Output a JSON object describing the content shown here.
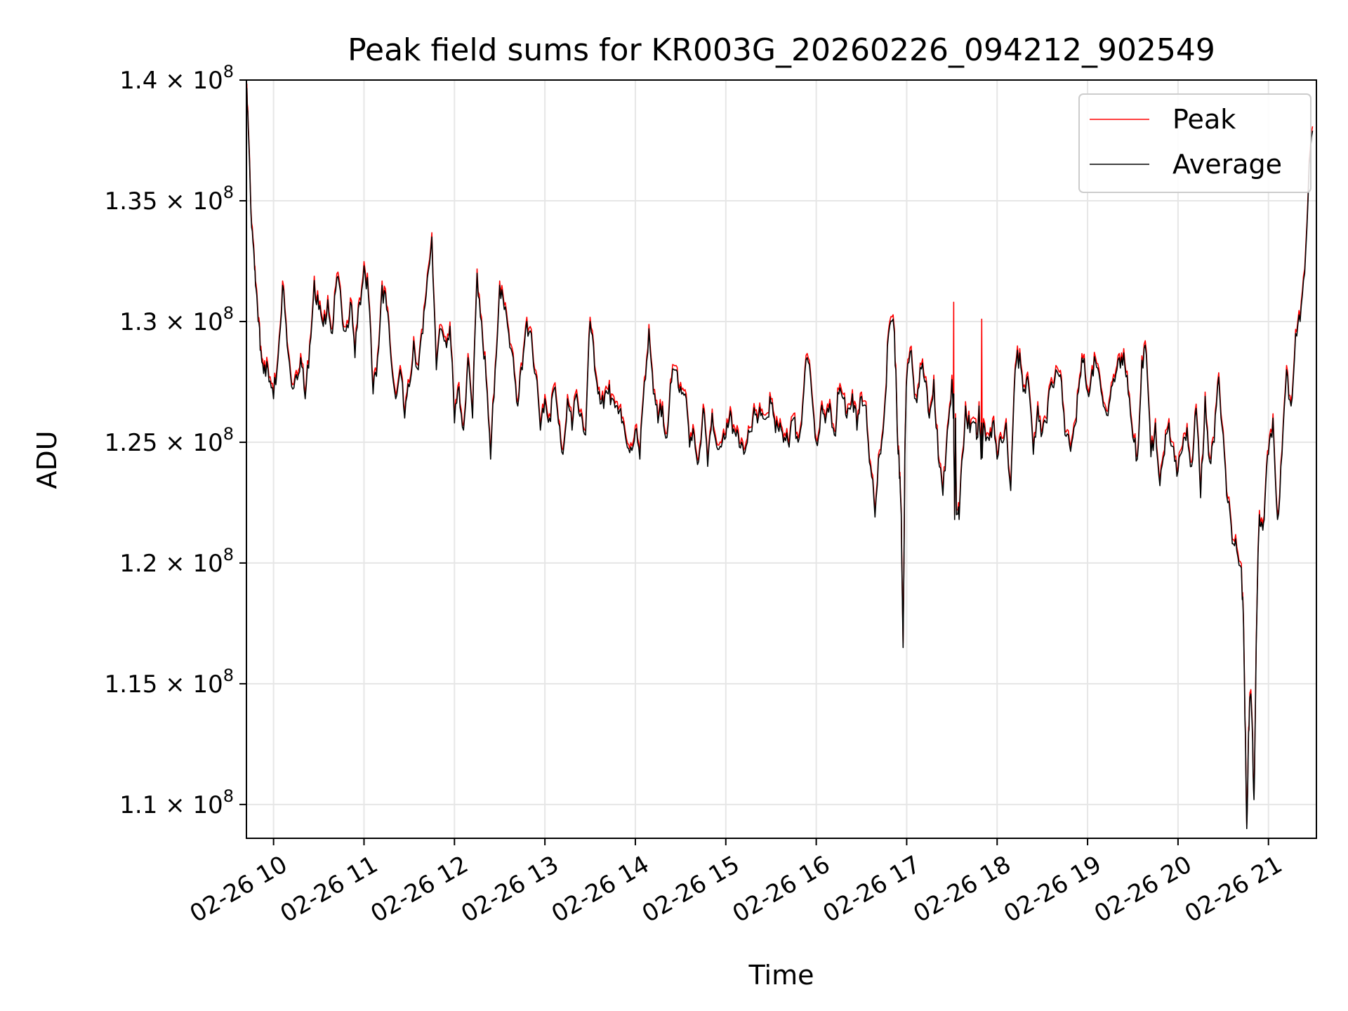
{
  "chart_data": {
    "type": "line",
    "title": "Peak field sums for KR003G_20260226_094212_902549",
    "xlabel": "Time",
    "ylabel": "ADU",
    "xlim": [
      9.7,
      21.53
    ],
    "ylim": [
      108600000,
      140000000
    ],
    "grid": true,
    "legend_position": "upper right",
    "x_ticks": [
      {
        "value": 10,
        "label": "02-26 10"
      },
      {
        "value": 11,
        "label": "02-26 11"
      },
      {
        "value": 12,
        "label": "02-26 12"
      },
      {
        "value": 13,
        "label": "02-26 13"
      },
      {
        "value": 14,
        "label": "02-26 14"
      },
      {
        "value": 15,
        "label": "02-26 15"
      },
      {
        "value": 16,
        "label": "02-26 16"
      },
      {
        "value": 17,
        "label": "02-26 17"
      },
      {
        "value": 18,
        "label": "02-26 18"
      },
      {
        "value": 19,
        "label": "02-26 19"
      },
      {
        "value": 20,
        "label": "02-26 20"
      },
      {
        "value": 21,
        "label": "02-26 21"
      }
    ],
    "y_ticks": [
      {
        "value": 110000000,
        "mant": "1.1",
        "exp": "8"
      },
      {
        "value": 115000000,
        "mant": "1.15",
        "exp": "8"
      },
      {
        "value": 120000000,
        "mant": "1.2",
        "exp": "8"
      },
      {
        "value": 125000000,
        "mant": "1.25",
        "exp": "8"
      },
      {
        "value": 130000000,
        "mant": "1.3",
        "exp": "8"
      },
      {
        "value": 135000000,
        "mant": "1.35",
        "exp": "8"
      },
      {
        "value": 140000000,
        "mant": "1.4",
        "exp": "8"
      }
    ],
    "times_mult": "×",
    "base": "10",
    "series": [
      {
        "name": "Peak",
        "color": "#ff0000",
        "offset": 180000
      },
      {
        "name": "Average",
        "color": "#000000",
        "offset": 0
      }
    ],
    "x": [
      9.7,
      9.72,
      9.75,
      9.78,
      9.8,
      9.83,
      9.86,
      9.9,
      9.95,
      10.0,
      10.05,
      10.1,
      10.15,
      10.2,
      10.25,
      10.3,
      10.35,
      10.4,
      10.45,
      10.5,
      10.55,
      10.6,
      10.65,
      10.7,
      10.75,
      10.8,
      10.85,
      10.9,
      10.95,
      11.0,
      11.05,
      11.1,
      11.15,
      11.2,
      11.25,
      11.3,
      11.35,
      11.4,
      11.45,
      11.5,
      11.55,
      11.6,
      11.65,
      11.7,
      11.75,
      11.8,
      11.85,
      11.9,
      11.95,
      12.0,
      12.05,
      12.1,
      12.15,
      12.2,
      12.25,
      12.3,
      12.35,
      12.4,
      12.45,
      12.5,
      12.55,
      12.6,
      12.65,
      12.7,
      12.75,
      12.8,
      12.85,
      12.9,
      12.95,
      13.0,
      13.05,
      13.1,
      13.15,
      13.2,
      13.25,
      13.3,
      13.35,
      13.4,
      13.45,
      13.5,
      13.55,
      13.6,
      13.65,
      13.7,
      13.75,
      13.8,
      13.85,
      13.9,
      13.95,
      14.0,
      14.05,
      14.1,
      14.15,
      14.2,
      14.25,
      14.3,
      14.35,
      14.4,
      14.45,
      14.5,
      14.55,
      14.6,
      14.65,
      14.7,
      14.75,
      14.8,
      14.85,
      14.9,
      14.95,
      15.0,
      15.05,
      15.1,
      15.15,
      15.2,
      15.25,
      15.3,
      15.35,
      15.4,
      15.45,
      15.5,
      15.55,
      15.6,
      15.65,
      15.7,
      15.75,
      15.8,
      15.85,
      15.9,
      15.95,
      16.0,
      16.05,
      16.1,
      16.15,
      16.2,
      16.25,
      16.3,
      16.35,
      16.4,
      16.45,
      16.5,
      16.55,
      16.6,
      16.65,
      16.7,
      16.75,
      16.8,
      16.85,
      16.88,
      16.9,
      16.92,
      16.94,
      16.96,
      16.98,
      17.0,
      17.05,
      17.1,
      17.15,
      17.2,
      17.25,
      17.3,
      17.35,
      17.4,
      17.45,
      17.5,
      17.52,
      17.53,
      17.54,
      17.55,
      17.58,
      17.62,
      17.65,
      17.7,
      17.75,
      17.78,
      17.8,
      17.83,
      17.85,
      17.9,
      17.95,
      18.0,
      18.05,
      18.1,
      18.15,
      18.2,
      18.25,
      18.3,
      18.35,
      18.4,
      18.45,
      18.5,
      18.55,
      18.6,
      18.65,
      18.7,
      18.75,
      18.8,
      18.85,
      18.9,
      18.95,
      19.0,
      19.05,
      19.1,
      19.15,
      19.2,
      19.25,
      19.3,
      19.35,
      19.4,
      19.45,
      19.5,
      19.55,
      19.6,
      19.65,
      19.7,
      19.75,
      19.8,
      19.85,
      19.9,
      19.95,
      20.0,
      20.05,
      20.1,
      20.15,
      20.2,
      20.25,
      20.3,
      20.35,
      20.4,
      20.45,
      20.5,
      20.55,
      20.6,
      20.65,
      20.7,
      20.72,
      20.74,
      20.76,
      20.78,
      20.8,
      20.82,
      20.84,
      20.86,
      20.88,
      20.9,
      20.93,
      20.96,
      21.0,
      21.05,
      21.1,
      21.15,
      21.2,
      21.25,
      21.3,
      21.35,
      21.4,
      21.45,
      21.5,
      21.53
    ],
    "average": [
      139600000,
      138000000,
      134500000,
      133000000,
      131500000,
      130000000,
      128800000,
      128200000,
      127500000,
      126800000,
      128500000,
      131500000,
      129000000,
      127300000,
      127800000,
      128500000,
      126800000,
      129000000,
      131700000,
      130500000,
      129800000,
      130900000,
      129500000,
      131800000,
      130600000,
      129600000,
      130800000,
      128500000,
      130800000,
      132300000,
      131000000,
      127000000,
      128500000,
      131500000,
      130500000,
      128400000,
      126800000,
      128000000,
      126000000,
      127300000,
      129200000,
      128000000,
      129500000,
      131800000,
      133500000,
      128000000,
      129700000,
      129200000,
      129800000,
      125800000,
      127300000,
      125500000,
      128500000,
      126000000,
      132000000,
      130000000,
      127600000,
      124300000,
      128000000,
      131500000,
      130500000,
      129500000,
      128500000,
      126500000,
      128000000,
      130000000,
      129500000,
      127800000,
      125500000,
      126800000,
      126000000,
      127200000,
      125800000,
      124500000,
      126800000,
      125500000,
      127000000,
      126200000,
      125300000,
      130000000,
      128000000,
      127100000,
      126400000,
      127000000,
      126800000,
      126500000,
      125800000,
      125000000,
      124800000,
      125500000,
      124300000,
      127500000,
      129700000,
      127000000,
      125800000,
      126500000,
      125200000,
      127500000,
      128000000,
      127300000,
      127000000,
      124800000,
      125300000,
      124200000,
      126400000,
      124000000,
      126200000,
      124800000,
      124800000,
      125200000,
      126300000,
      125400000,
      124800000,
      124500000,
      125500000,
      126000000,
      125800000,
      126200000,
      126000000,
      126600000,
      125400000,
      125800000,
      125200000,
      124800000,
      126000000,
      125000000,
      126500000,
      128500000,
      127000000,
      125000000,
      126200000,
      125800000,
      126600000,
      125300000,
      127000000,
      126800000,
      126400000,
      127000000,
      125500000,
      126900000,
      126500000,
      124000000,
      121900000,
      124500000,
      126000000,
      129500000,
      130100000,
      128000000,
      125000000,
      123500000,
      122000000,
      116500000,
      124500000,
      127600000,
      128800000,
      126800000,
      128100000,
      127500000,
      126000000,
      127600000,
      124300000,
      122800000,
      125500000,
      127600000,
      125000000,
      121800000,
      126000000,
      122000000,
      121800000,
      124500000,
      126500000,
      125400000,
      125800000,
      125200000,
      126500000,
      123400000,
      125800000,
      125200000,
      125800000,
      124300000,
      125000000,
      125800000,
      123000000,
      128000000,
      128700000,
      127200000,
      127300000,
      124500000,
      126500000,
      125400000,
      125800000,
      127500000,
      128000000,
      127800000,
      125300000,
      124900000,
      125600000,
      127100000,
      128300000,
      127100000,
      128000000,
      128100000,
      127100000,
      126300000,
      126800000,
      127500000,
      128500000,
      128700000,
      127000000,
      125200000,
      124300000,
      128400000,
      128600000,
      124400000,
      125800000,
      123200000,
      124500000,
      125800000,
      124800000,
      123800000,
      124700000,
      125600000,
      124000000,
      126400000,
      122700000,
      126900000,
      124200000,
      125000000,
      127700000,
      125300000,
      122500000,
      120800000,
      120500000,
      119800000,
      118000000,
      113500000,
      109000000,
      113000000,
      114500000,
      113300000,
      110200000,
      115300000,
      119500000,
      122000000,
      121600000,
      122500000,
      124500000,
      126000000,
      121800000,
      124500000,
      128000000,
      126500000,
      129500000,
      130000000,
      132000000,
      136500000,
      139000000
    ],
    "spikes": [
      {
        "x": 17.52,
        "peak": 130800000,
        "average": 127000000
      },
      {
        "x": 17.83,
        "peak": 130100000,
        "average": 125800000
      }
    ]
  }
}
